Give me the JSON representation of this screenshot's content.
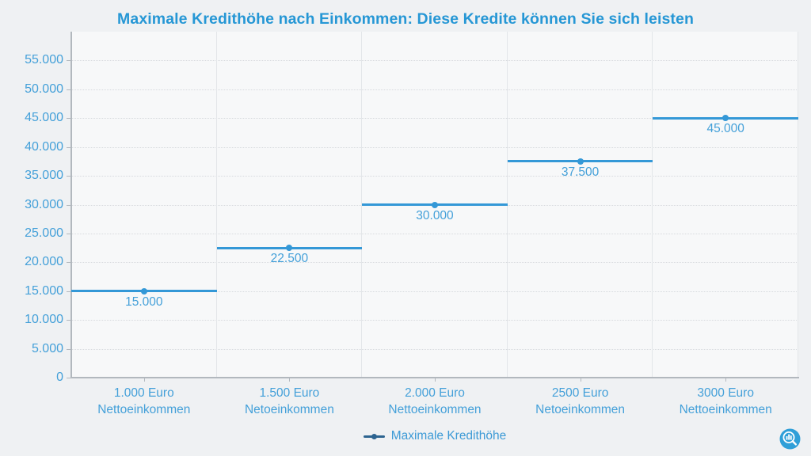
{
  "title": "Maximale Kredithöhe nach Einkommen: Diese Kredite können Sie sich leisten",
  "legend": {
    "label": "Maximale Kredithöhe",
    "marker": "line-dot-marker"
  },
  "logo": "bar-chart-magnifier-logo",
  "colors": {
    "series": "#3498d7",
    "label_text": "#44a0d9",
    "title_text": "#2697d5",
    "legend_marker": "#2d6490",
    "axis": "#b2b8be",
    "grid_horizontal": "#d7dade",
    "grid_vertical": "#e3e6e9",
    "background": "#eff1f3",
    "plot_background": "#f7f8f9"
  },
  "chart_data": {
    "type": "line",
    "subtype": "horizontal-step-segments",
    "title": "Maximale Kredithöhe nach Einkommen: Diese Kredite können Sie sich leisten",
    "series_name": "Maximale Kredithöhe",
    "categories": [
      "1.000 Euro\nNettoeinkommen",
      "1.500 Euro\nNetoeinkommen",
      "2.000 Euro\nNettoeinkommen",
      "2500 Euro\nNetoeinkommen",
      "3000 Euro\nNettoeinkommen"
    ],
    "values": [
      15000,
      22500,
      30000,
      37500,
      45000
    ],
    "value_labels": [
      "15.000",
      "22.500",
      "30.000",
      "37.500",
      "45.000"
    ],
    "xlabel": "",
    "ylabel": "",
    "ylim": [
      0,
      60000
    ],
    "ytick_values": [
      0,
      5000,
      10000,
      15000,
      20000,
      25000,
      30000,
      35000,
      40000,
      45000,
      50000,
      55000
    ],
    "ytick_labels": [
      "0",
      "5.000",
      "10.000",
      "15.000",
      "20.000",
      "25.000",
      "30.000",
      "35.000",
      "40.000",
      "45.000",
      "50.000",
      "55.000"
    ],
    "grid": true,
    "legend_position": "bottom"
  }
}
